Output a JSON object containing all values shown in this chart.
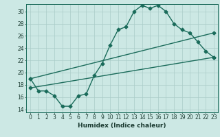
{
  "xlabel": "Humidex (Indice chaleur)",
  "background_color": "#cce8e4",
  "grid_color": "#aaccc8",
  "line_color": "#1a6b5a",
  "xlim": [
    -0.5,
    23.5
  ],
  "ylim": [
    13.5,
    31.2
  ],
  "yticks": [
    14,
    16,
    18,
    20,
    22,
    24,
    26,
    28,
    30
  ],
  "xticks": [
    0,
    1,
    2,
    3,
    4,
    5,
    6,
    7,
    8,
    9,
    10,
    11,
    12,
    13,
    14,
    15,
    16,
    17,
    18,
    19,
    20,
    21,
    22,
    23
  ],
  "line1_x": [
    0,
    1,
    2,
    3,
    4,
    5,
    6,
    7,
    8,
    9,
    10,
    11,
    12,
    13,
    14,
    15,
    16,
    17,
    18,
    19,
    20,
    21,
    22,
    23
  ],
  "line1_y": [
    19.0,
    17.0,
    17.0,
    16.2,
    14.5,
    14.5,
    16.2,
    16.5,
    19.5,
    21.5,
    24.5,
    27.0,
    27.5,
    30.0,
    31.0,
    30.5,
    31.0,
    30.0,
    28.0,
    27.0,
    26.5,
    25.0,
    23.5,
    22.5
  ],
  "line2_x": [
    0,
    23
  ],
  "line2_y": [
    17.5,
    22.5
  ],
  "line3_x": [
    0,
    23
  ],
  "line3_y": [
    19.0,
    26.5
  ],
  "marker_size": 2.5,
  "line_width": 1.0,
  "font_size_label": 6.5,
  "font_size_tick": 5.5
}
